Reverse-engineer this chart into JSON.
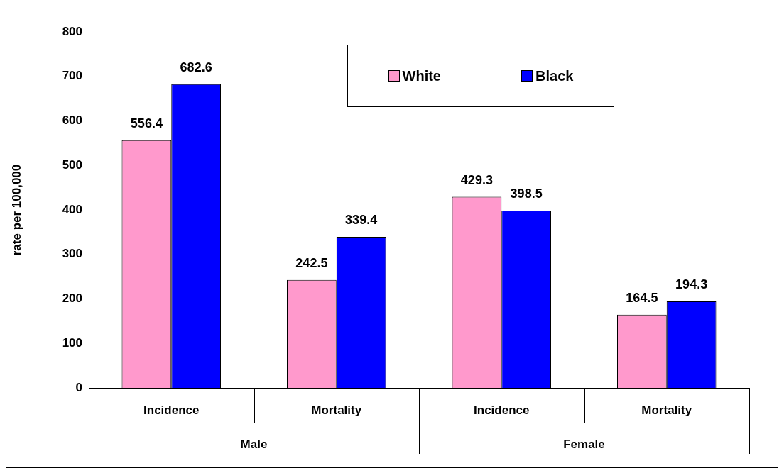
{
  "chart_data": {
    "type": "bar",
    "ylabel": "rate per 100,000",
    "categories": [
      "Incidence",
      "Mortality",
      "Incidence",
      "Mortality"
    ],
    "series": [
      {
        "name": "White",
        "color": "#ff99cc",
        "values": [
          556.4,
          242.5,
          429.3,
          164.5
        ]
      },
      {
        "name": "Black",
        "color": "#0000ff",
        "values": [
          682.6,
          339.4,
          398.5,
          194.3
        ]
      }
    ],
    "annotations": [
      "Male",
      "Female"
    ],
    "ylim": [
      0,
      800
    ],
    "yticks": [
      0,
      100,
      200,
      300,
      400,
      500,
      600,
      700,
      800
    ],
    "data_labels": true,
    "legend": "top right",
    "grid": false
  }
}
